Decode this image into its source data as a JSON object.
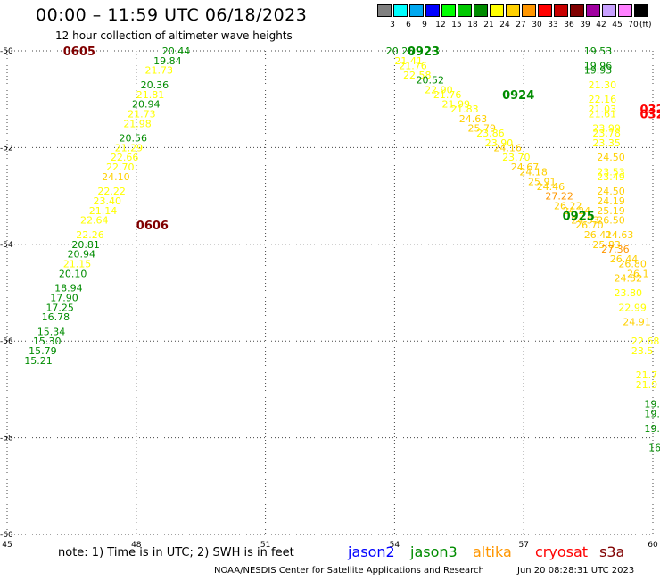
{
  "header": {
    "title": "00:00 – 11:59 UTC 06/18/2023",
    "subtitle": "12 hour collection of altimeter wave heights"
  },
  "legend": {
    "bins": [
      {
        "label": "3",
        "color": "#808080"
      },
      {
        "label": "6",
        "color": "#00ffff"
      },
      {
        "label": "9",
        "color": "#00a8f0"
      },
      {
        "label": "12",
        "color": "#0000ff"
      },
      {
        "label": "15",
        "color": "#00ff00"
      },
      {
        "label": "18",
        "color": "#00c800"
      },
      {
        "label": "21",
        "color": "#008c00"
      },
      {
        "label": "24",
        "color": "#ffff00"
      },
      {
        "label": "27",
        "color": "#ffd000"
      },
      {
        "label": "30",
        "color": "#ff9600"
      },
      {
        "label": "33",
        "color": "#ff0000"
      },
      {
        "label": "36",
        "color": "#c80000"
      },
      {
        "label": "39",
        "color": "#800000"
      },
      {
        "label": "42",
        "color": "#a000a0"
      },
      {
        "label": "45",
        "color": "#c8a0ff"
      },
      {
        "label": "70",
        "color": "#ff80ff"
      },
      {
        "label": "",
        "color": "#000000"
      }
    ],
    "unit": "(ft)"
  },
  "map": {
    "lon_ticks": [
      "45",
      "48",
      "51",
      "54",
      "57",
      "60"
    ],
    "lat_ticks": [
      "-50",
      "-52",
      "-54",
      "-56",
      "-58",
      "-60"
    ],
    "lon_range": [
      45,
      60
    ],
    "lat_range": [
      -50,
      -60
    ],
    "grid": "dotted"
  },
  "chart_data": {
    "type": "scatter",
    "x_label": "",
    "y_label": "",
    "xlim": [
      45,
      60
    ],
    "ylim": [
      -60,
      -50
    ],
    "time_labels": [
      {
        "text": "0605",
        "lon": 46.3,
        "lat": -50.0,
        "color": "#800000"
      },
      {
        "text": "0606",
        "lon": 48.0,
        "lat": -53.6,
        "color": "#800000"
      },
      {
        "text": "0923",
        "lon": 54.3,
        "lat": -50.0,
        "color": "#008c00"
      },
      {
        "text": "0924",
        "lon": 56.5,
        "lat": -50.9,
        "color": "#008c00"
      },
      {
        "text": "0925",
        "lon": 57.9,
        "lat": -53.4,
        "color": "#008c00"
      },
      {
        "text": "032",
        "lon": 59.7,
        "lat": -51.2,
        "color": "#ff0000"
      },
      {
        "text": "032",
        "lon": 59.7,
        "lat": -51.3,
        "color": "#ff0000"
      }
    ],
    "tracks": [
      {
        "name": "",
        "color_default": "#008c00",
        "points": [
          {
            "v": "20.44",
            "lon": 48.6,
            "lat": -50.0,
            "c": "#008c00"
          },
          {
            "v": "19.84",
            "lon": 48.4,
            "lat": -50.2,
            "c": "#008c00"
          },
          {
            "v": "21.73",
            "lon": 48.2,
            "lat": -50.4,
            "c": "#ffff00"
          },
          {
            "v": "20.36",
            "lon": 48.1,
            "lat": -50.7,
            "c": "#008c00"
          },
          {
            "v": "21.81",
            "lon": 48.0,
            "lat": -50.9,
            "c": "#ffff00"
          },
          {
            "v": "20.94",
            "lon": 47.9,
            "lat": -51.1,
            "c": "#008c00"
          },
          {
            "v": "21.73",
            "lon": 47.8,
            "lat": -51.3,
            "c": "#ffff00"
          },
          {
            "v": "21.98",
            "lon": 47.7,
            "lat": -51.5,
            "c": "#ffff00"
          },
          {
            "v": "20.56",
            "lon": 47.6,
            "lat": -51.8,
            "c": "#008c00"
          },
          {
            "v": "21.29",
            "lon": 47.5,
            "lat": -52.0,
            "c": "#ffff00"
          },
          {
            "v": "22.66",
            "lon": 47.4,
            "lat": -52.2,
            "c": "#ffff00"
          },
          {
            "v": "22.70",
            "lon": 47.3,
            "lat": -52.4,
            "c": "#ffff00"
          },
          {
            "v": "24.10",
            "lon": 47.2,
            "lat": -52.6,
            "c": "#ffd000"
          },
          {
            "v": "22.22",
            "lon": 47.1,
            "lat": -52.9,
            "c": "#ffff00"
          },
          {
            "v": "23.40",
            "lon": 47.0,
            "lat": -53.1,
            "c": "#ffff00"
          },
          {
            "v": "21.14",
            "lon": 46.9,
            "lat": -53.3,
            "c": "#ffff00"
          },
          {
            "v": "22.64",
            "lon": 46.7,
            "lat": -53.5,
            "c": "#ffff00"
          },
          {
            "v": "22.26",
            "lon": 46.6,
            "lat": -53.8,
            "c": "#ffff00"
          },
          {
            "v": "20.81",
            "lon": 46.5,
            "lat": -54.0,
            "c": "#008c00"
          },
          {
            "v": "20.94",
            "lon": 46.4,
            "lat": -54.2,
            "c": "#008c00"
          },
          {
            "v": "21.15",
            "lon": 46.3,
            "lat": -54.4,
            "c": "#ffff00"
          },
          {
            "v": "20.10",
            "lon": 46.2,
            "lat": -54.6,
            "c": "#008c00"
          },
          {
            "v": "18.94",
            "lon": 46.1,
            "lat": -54.9,
            "c": "#008c00"
          },
          {
            "v": "17.90",
            "lon": 46.0,
            "lat": -55.1,
            "c": "#008c00"
          },
          {
            "v": "17.25",
            "lon": 45.9,
            "lat": -55.3,
            "c": "#008c00"
          },
          {
            "v": "16.78",
            "lon": 45.8,
            "lat": -55.5,
            "c": "#008c00"
          },
          {
            "v": "15.34",
            "lon": 45.7,
            "lat": -55.8,
            "c": "#008c00"
          },
          {
            "v": "15.30",
            "lon": 45.6,
            "lat": -56.0,
            "c": "#008c00"
          },
          {
            "v": "15.79",
            "lon": 45.5,
            "lat": -56.2,
            "c": "#008c00"
          },
          {
            "v": "15.21",
            "lon": 45.4,
            "lat": -56.4,
            "c": "#008c00"
          }
        ]
      },
      {
        "name": "",
        "color_default": "#ffd000",
        "points": [
          {
            "v": "20.25",
            "lon": 53.8,
            "lat": -50.0,
            "c": "#008c00"
          },
          {
            "v": "21.41",
            "lon": 54.0,
            "lat": -50.2,
            "c": "#ffff00"
          },
          {
            "v": "21.76",
            "lon": 54.1,
            "lat": -50.3,
            "c": "#ffff00"
          },
          {
            "v": "22.58",
            "lon": 54.2,
            "lat": -50.5,
            "c": "#ffff00"
          },
          {
            "v": "20.52",
            "lon": 54.5,
            "lat": -50.6,
            "c": "#008c00"
          },
          {
            "v": "22.90",
            "lon": 54.7,
            "lat": -50.8,
            "c": "#ffff00"
          },
          {
            "v": "21.76",
            "lon": 54.9,
            "lat": -50.9,
            "c": "#ffff00"
          },
          {
            "v": "21.99",
            "lon": 55.1,
            "lat": -51.1,
            "c": "#ffff00"
          },
          {
            "v": "21.83",
            "lon": 55.3,
            "lat": -51.2,
            "c": "#ffff00"
          },
          {
            "v": "24.63",
            "lon": 55.5,
            "lat": -51.4,
            "c": "#ffd000"
          },
          {
            "v": "25.79",
            "lon": 55.7,
            "lat": -51.6,
            "c": "#ffd000"
          },
          {
            "v": "23.86",
            "lon": 55.9,
            "lat": -51.7,
            "c": "#ffff00"
          },
          {
            "v": "23.90",
            "lon": 56.1,
            "lat": -51.9,
            "c": "#ffff00"
          },
          {
            "v": "24.16",
            "lon": 56.3,
            "lat": -52.0,
            "c": "#ffd000"
          },
          {
            "v": "23.70",
            "lon": 56.5,
            "lat": -52.2,
            "c": "#ffff00"
          },
          {
            "v": "24.67",
            "lon": 56.7,
            "lat": -52.4,
            "c": "#ffd000"
          },
          {
            "v": "24.18",
            "lon": 56.9,
            "lat": -52.5,
            "c": "#ffd000"
          },
          {
            "v": "25.91",
            "lon": 57.1,
            "lat": -52.7,
            "c": "#ffd000"
          },
          {
            "v": "24.46",
            "lon": 57.3,
            "lat": -52.8,
            "c": "#ffd000"
          },
          {
            "v": "27.22",
            "lon": 57.5,
            "lat": -53.0,
            "c": "#ff9600"
          },
          {
            "v": "26.22",
            "lon": 57.7,
            "lat": -53.2,
            "c": "#ffd000"
          },
          {
            "v": "24.24",
            "lon": 57.9,
            "lat": -53.3,
            "c": "#ffd000"
          },
          {
            "v": "24.53",
            "lon": 58.1,
            "lat": -53.5,
            "c": "#ffd000"
          },
          {
            "v": "26.70",
            "lon": 58.2,
            "lat": -53.6,
            "c": "#ffd000"
          },
          {
            "v": "26.41",
            "lon": 58.4,
            "lat": -53.8,
            "c": "#ffd000"
          },
          {
            "v": "25.83",
            "lon": 58.6,
            "lat": -54.0,
            "c": "#ffd000"
          },
          {
            "v": "27.36",
            "lon": 58.8,
            "lat": -54.1,
            "c": "#ff9600"
          },
          {
            "v": "26.44",
            "lon": 59.0,
            "lat": -54.3,
            "c": "#ffd000"
          },
          {
            "v": "26.80",
            "lon": 59.2,
            "lat": -54.4,
            "c": "#ffd000"
          },
          {
            "v": "26.1",
            "lon": 59.4,
            "lat": -54.6,
            "c": "#ffd000"
          }
        ]
      },
      {
        "name": "",
        "color_default": "#ffff00",
        "points": [
          {
            "v": "19.53",
            "lon": 58.4,
            "lat": -50.0,
            "c": "#008c00"
          },
          {
            "v": "19.96",
            "lon": 58.4,
            "lat": -50.3,
            "c": "#008c00"
          },
          {
            "v": "19.93",
            "lon": 58.4,
            "lat": -50.4,
            "c": "#008c00"
          },
          {
            "v": "21.30",
            "lon": 58.5,
            "lat": -50.7,
            "c": "#ffff00"
          },
          {
            "v": "22.16",
            "lon": 58.5,
            "lat": -51.0,
            "c": "#ffff00"
          },
          {
            "v": "21.03",
            "lon": 58.5,
            "lat": -51.2,
            "c": "#ffff00"
          },
          {
            "v": "21.61",
            "lon": 58.5,
            "lat": -51.3,
            "c": "#ffff00"
          },
          {
            "v": "23.99",
            "lon": 58.6,
            "lat": -51.6,
            "c": "#ffff00"
          },
          {
            "v": "23.78",
            "lon": 58.6,
            "lat": -51.7,
            "c": "#ffff00"
          },
          {
            "v": "23.35",
            "lon": 58.6,
            "lat": -51.9,
            "c": "#ffff00"
          },
          {
            "v": "24.50",
            "lon": 58.7,
            "lat": -52.2,
            "c": "#ffd000"
          },
          {
            "v": "23.53",
            "lon": 58.7,
            "lat": -52.5,
            "c": "#ffff00"
          },
          {
            "v": "23.49",
            "lon": 58.7,
            "lat": -52.6,
            "c": "#ffff00"
          },
          {
            "v": "24.50",
            "lon": 58.7,
            "lat": -52.9,
            "c": "#ffd000"
          },
          {
            "v": "24.19",
            "lon": 58.7,
            "lat": -53.1,
            "c": "#ffd000"
          },
          {
            "v": "25.19",
            "lon": 58.7,
            "lat": -53.3,
            "c": "#ffd000"
          },
          {
            "v": "26.50",
            "lon": 58.7,
            "lat": -53.5,
            "c": "#ffd000"
          },
          {
            "v": "24.63",
            "lon": 58.9,
            "lat": -53.8,
            "c": "#ffd000"
          },
          {
            "v": "24.32",
            "lon": 59.1,
            "lat": -54.7,
            "c": "#ffd000"
          },
          {
            "v": "23.80",
            "lon": 59.1,
            "lat": -55.0,
            "c": "#ffff00"
          },
          {
            "v": "22.99",
            "lon": 59.2,
            "lat": -55.3,
            "c": "#ffff00"
          },
          {
            "v": "24.91",
            "lon": 59.3,
            "lat": -55.6,
            "c": "#ffd000"
          },
          {
            "v": "22.68",
            "lon": 59.5,
            "lat": -56.0,
            "c": "#ffff00"
          },
          {
            "v": "23.5",
            "lon": 59.5,
            "lat": -56.2,
            "c": "#ffff00"
          },
          {
            "v": "21.7",
            "lon": 59.6,
            "lat": -56.7,
            "c": "#ffff00"
          },
          {
            "v": "21.9",
            "lon": 59.6,
            "lat": -56.9,
            "c": "#ffff00"
          },
          {
            "v": "19.7",
            "lon": 59.8,
            "lat": -57.3,
            "c": "#008c00"
          },
          {
            "v": "19.2",
            "lon": 59.8,
            "lat": -57.5,
            "c": "#008c00"
          },
          {
            "v": "19.",
            "lon": 59.8,
            "lat": -57.8,
            "c": "#008c00"
          },
          {
            "v": "16.",
            "lon": 59.9,
            "lat": -58.2,
            "c": "#008c00"
          }
        ]
      }
    ]
  },
  "footer": {
    "note": "note: 1) Time is in UTC; 2) SWH is in feet",
    "satellites": [
      {
        "label": "jason2",
        "color": "#0000ff"
      },
      {
        "label": "jason3",
        "color": "#008c00"
      },
      {
        "label": "altika",
        "color": "#ff9600"
      },
      {
        "label": "cryosat",
        "color": "#ff0000"
      },
      {
        "label": "s3a",
        "color": "#800000"
      }
    ],
    "credit": "NOAA/NESDIS Center for Satellite Applications and Research",
    "timestamp": "Jun 20 08:28:31 UTC 2023"
  }
}
